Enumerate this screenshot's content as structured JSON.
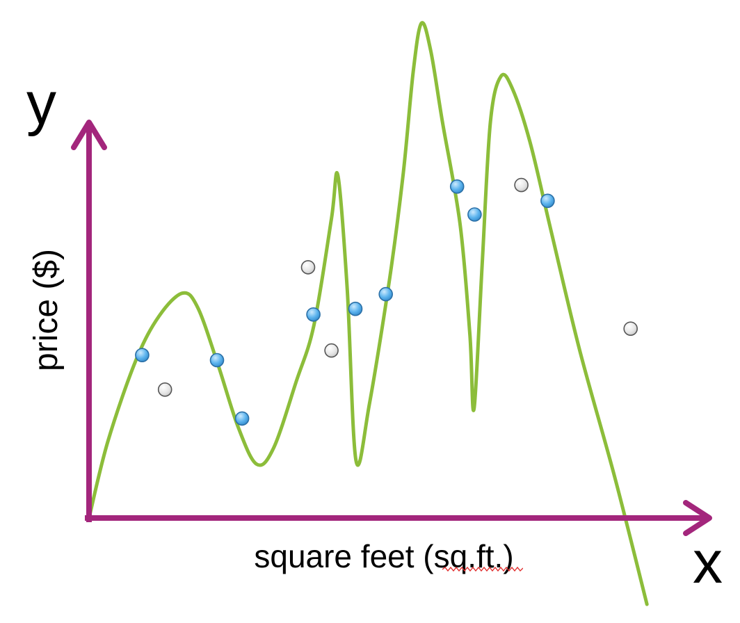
{
  "chart_data": {
    "type": "scatter",
    "title": "",
    "xlabel": "square feet (sq.ft.)",
    "ylabel": "price ($)",
    "x_axis_letter": "x",
    "y_axis_letter": "y",
    "xlim": [
      0,
      100
    ],
    "ylim": [
      0,
      100
    ],
    "grid": false,
    "series": [
      {
        "kind": "training-points",
        "color": "#4da8e6",
        "points": [
          {
            "x": 9.1,
            "y": 32.1
          },
          {
            "x": 21.9,
            "y": 31.1
          },
          {
            "x": 26.2,
            "y": 19.6
          },
          {
            "x": 38.4,
            "y": 40.1
          },
          {
            "x": 45.6,
            "y": 41.2
          },
          {
            "x": 50.8,
            "y": 44.1
          },
          {
            "x": 63.0,
            "y": 65.3
          },
          {
            "x": 66.0,
            "y": 59.8
          },
          {
            "x": 78.5,
            "y": 62.5
          }
        ]
      },
      {
        "kind": "test-points",
        "color": "#e0e0e0",
        "points": [
          {
            "x": 13.0,
            "y": 25.3
          },
          {
            "x": 37.5,
            "y": 49.4
          },
          {
            "x": 41.5,
            "y": 33.0
          },
          {
            "x": 74.0,
            "y": 65.6
          },
          {
            "x": 92.7,
            "y": 37.3
          }
        ]
      },
      {
        "kind": "fitted-curve",
        "color": "#8cbd3a",
        "points": [
          {
            "x": 0.0,
            "y": 0.0
          },
          {
            "x": 3.2,
            "y": 15.0
          },
          {
            "x": 8.0,
            "y": 31.0
          },
          {
            "x": 12.0,
            "y": 39.8
          },
          {
            "x": 16.0,
            "y": 44.3
          },
          {
            "x": 18.6,
            "y": 41.5
          },
          {
            "x": 22.0,
            "y": 30.5
          },
          {
            "x": 25.5,
            "y": 18.0
          },
          {
            "x": 28.7,
            "y": 10.6
          },
          {
            "x": 31.6,
            "y": 13.8
          },
          {
            "x": 35.5,
            "y": 27.0
          },
          {
            "x": 38.5,
            "y": 38.0
          },
          {
            "x": 41.5,
            "y": 59.0
          },
          {
            "x": 42.6,
            "y": 67.5
          },
          {
            "x": 44.2,
            "y": 45.0
          },
          {
            "x": 45.7,
            "y": 11.3
          },
          {
            "x": 48.0,
            "y": 22.5
          },
          {
            "x": 51.5,
            "y": 47.5
          },
          {
            "x": 53.8,
            "y": 68.0
          },
          {
            "x": 55.5,
            "y": 88.0
          },
          {
            "x": 56.9,
            "y": 97.5
          },
          {
            "x": 58.5,
            "y": 92.0
          },
          {
            "x": 60.5,
            "y": 78.0
          },
          {
            "x": 63.5,
            "y": 58.0
          },
          {
            "x": 65.2,
            "y": 36.0
          },
          {
            "x": 65.9,
            "y": 21.5
          },
          {
            "x": 67.3,
            "y": 50.0
          },
          {
            "x": 68.7,
            "y": 78.0
          },
          {
            "x": 70.5,
            "y": 87.0
          },
          {
            "x": 72.5,
            "y": 84.5
          },
          {
            "x": 75.5,
            "y": 74.0
          },
          {
            "x": 79.0,
            "y": 57.0
          },
          {
            "x": 84.0,
            "y": 33.0
          },
          {
            "x": 90.0,
            "y": 8.0
          },
          {
            "x": 95.5,
            "y": -17.0
          }
        ]
      }
    ],
    "axis_color": "#a3267c"
  }
}
